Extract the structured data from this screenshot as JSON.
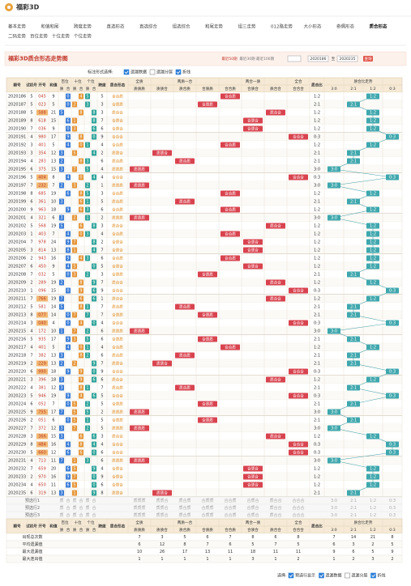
{
  "header": {
    "logo": "福彩3D"
  },
  "nav": {
    "row1": [
      "基本走势",
      "和值和尾",
      "跨度走势",
      "直选形态",
      "直选综合",
      "组选综合",
      "和尾走势",
      "组三走势",
      "012路走势",
      "大小形态",
      "奇偶形态",
      "质合形态"
    ],
    "row2": [
      "二码走势",
      "百位走势",
      "十位走势",
      "个位走势"
    ],
    "active": "质合形态"
  },
  "toolbar": {
    "title": "福彩3D质合形态走势图",
    "links": [
      "最近50期",
      "最近30期",
      "最近100期"
    ],
    "from": "2020186",
    "to_label": "至",
    "to": "2020235",
    "button": "查询"
  },
  "options": {
    "label": "标注形式选择:",
    "items": [
      {
        "text": "遗漏数据",
        "checked": true
      },
      {
        "text": "遗漏分层",
        "checked": false
      },
      {
        "text": "折线",
        "checked": true
      }
    ]
  },
  "table": {
    "headers": {
      "issue": "期号",
      "trial": "试机号",
      "number": "开号",
      "sum": "和值",
      "positions": [
        "百位",
        "十位",
        "个位"
      ],
      "pos_sub": [
        "质",
        "合"
      ],
      "span": "跨度",
      "shape": "质合形态",
      "groups": [
        {
          "name": "全质",
          "cols": [
            "质质质"
          ]
        },
        {
          "name": "两质一合",
          "cols": [
            "质质合",
            "质合质",
            "合质质"
          ]
        },
        {
          "name": "两合一质",
          "cols": [
            "合合质",
            "合质合",
            "质合合"
          ]
        },
        {
          "name": "全合",
          "cols": [
            "合合合"
          ]
        }
      ],
      "ratio": "质合比",
      "trend": "质合比走势",
      "trend_cols": [
        "3:0",
        "2:1",
        "1:2",
        "0:3"
      ]
    },
    "rows": [
      {
        "issue": "2020186",
        "trial": 5,
        "number": "045",
        "digits": [
          0,
          4,
          5
        ],
        "sum": 9,
        "span": 5,
        "shape": "合合质",
        "ratio": "1:2"
      },
      {
        "issue": "2020187",
        "trial": 5,
        "number": "023",
        "digits": [
          0,
          2,
          3
        ],
        "sum": 5,
        "span": 3,
        "shape": "合质质",
        "ratio": "2:1"
      },
      {
        "issue": "2020188",
        "trial": 5,
        "number": "588",
        "digits": [
          5,
          8,
          8
        ],
        "sum": 21,
        "span": 3,
        "shape": "质合合",
        "ratio": "1:2"
      },
      {
        "issue": "2020189",
        "trial": 8,
        "number": "618",
        "digits": [
          6,
          1,
          8
        ],
        "sum": 15,
        "span": 7,
        "shape": "合质合",
        "ratio": "1:2"
      },
      {
        "issue": "2020190",
        "trial": 7,
        "number": "036",
        "digits": [
          0,
          3,
          6
        ],
        "sum": 9,
        "span": 6,
        "shape": "合质合",
        "ratio": "1:2"
      },
      {
        "issue": "2020191",
        "trial": 4,
        "number": "980",
        "digits": [
          9,
          8,
          0
        ],
        "sum": 17,
        "span": 9,
        "shape": "合合合",
        "ratio": "0:3"
      },
      {
        "issue": "2020192",
        "trial": 3,
        "number": "401",
        "digits": [
          4,
          0,
          1
        ],
        "sum": 5,
        "span": 4,
        "shape": "合合质",
        "ratio": "1:2"
      },
      {
        "issue": "2020193",
        "trial": 3,
        "number": "354",
        "digits": [
          3,
          5,
          4
        ],
        "sum": 12,
        "span": 2,
        "shape": "质质合",
        "ratio": "2:1"
      },
      {
        "issue": "2020194",
        "trial": 4,
        "number": "283",
        "digits": [
          2,
          8,
          3
        ],
        "sum": 13,
        "span": 6,
        "shape": "质合质",
        "ratio": "2:1"
      },
      {
        "issue": "2020195",
        "trial": 6,
        "number": "375",
        "digits": [
          3,
          7,
          5
        ],
        "sum": 15,
        "span": 4,
        "shape": "质质质",
        "ratio": "3:0"
      },
      {
        "issue": "2020196",
        "trial": 5,
        "number": "404",
        "digits": [
          4,
          0,
          4
        ],
        "sum": 8,
        "span": 4,
        "shape": "合合合",
        "ratio": "0:3"
      },
      {
        "issue": "2020197",
        "trial": 7,
        "number": "232",
        "digits": [
          2,
          3,
          2
        ],
        "sum": 7,
        "span": 1,
        "shape": "质质质",
        "ratio": "3:0"
      },
      {
        "issue": "2020198",
        "trial": 8,
        "number": "685",
        "digits": [
          6,
          8,
          5
        ],
        "sum": 19,
        "span": 3,
        "shape": "合合质",
        "ratio": "1:2"
      },
      {
        "issue": "2020199",
        "trial": 6,
        "number": "361",
        "digits": [
          3,
          6,
          1
        ],
        "sum": 10,
        "span": 5,
        "shape": "质合质",
        "ratio": "2:1"
      },
      {
        "issue": "2020200",
        "trial": 9,
        "number": "963",
        "digits": [
          9,
          6,
          3
        ],
        "sum": 18,
        "span": 6,
        "shape": "合合质",
        "ratio": "1:2"
      },
      {
        "issue": "2020201",
        "trial": 4,
        "number": "321",
        "digits": [
          3,
          2,
          1
        ],
        "sum": 6,
        "span": 2,
        "shape": "质质质",
        "ratio": "3:0"
      },
      {
        "issue": "2020202",
        "trial": 5,
        "number": "568",
        "digits": [
          5,
          6,
          8
        ],
        "sum": 19,
        "span": 3,
        "shape": "质合合",
        "ratio": "1:2"
      },
      {
        "issue": "2020203",
        "trial": 1,
        "number": "403",
        "digits": [
          4,
          0,
          3
        ],
        "sum": 7,
        "span": 4,
        "shape": "合合质",
        "ratio": "1:2"
      },
      {
        "issue": "2020204",
        "trial": 7,
        "number": "978",
        "digits": [
          9,
          7,
          8
        ],
        "sum": 24,
        "span": 2,
        "shape": "合质合",
        "ratio": "1:2"
      },
      {
        "issue": "2020205",
        "trial": 3,
        "number": "814",
        "digits": [
          8,
          1,
          4
        ],
        "sum": 13,
        "span": 7,
        "shape": "合质合",
        "ratio": "1:2"
      },
      {
        "issue": "2020206",
        "trial": 2,
        "number": "943",
        "digits": [
          9,
          4,
          3
        ],
        "sum": 16,
        "span": 6,
        "shape": "合合质",
        "ratio": "1:2"
      },
      {
        "issue": "2020207",
        "trial": 6,
        "number": "450",
        "digits": [
          4,
          5,
          0
        ],
        "sum": 9,
        "span": 5,
        "shape": "合质合",
        "ratio": "1:2"
      },
      {
        "issue": "2020208",
        "trial": 7,
        "number": "032",
        "digits": [
          0,
          3,
          2
        ],
        "sum": 5,
        "span": 3,
        "shape": "合质质",
        "ratio": "2:1"
      },
      {
        "issue": "2020209",
        "trial": 2,
        "number": "289",
        "digits": [
          2,
          8,
          9
        ],
        "sum": 19,
        "span": 7,
        "shape": "质合合",
        "ratio": "1:2"
      },
      {
        "issue": "2020210",
        "trial": 1,
        "number": "096",
        "digits": [
          0,
          9,
          6
        ],
        "sum": 15,
        "span": 9,
        "shape": "合合合",
        "ratio": "0:3"
      },
      {
        "issue": "2020211",
        "trial": 7,
        "number": "766",
        "digits": [
          7,
          6,
          6
        ],
        "sum": 19,
        "span": 1,
        "shape": "质合合",
        "ratio": "1:2"
      },
      {
        "issue": "2020212",
        "trial": 5,
        "number": "581",
        "digits": [
          5,
          8,
          1
        ],
        "sum": 14,
        "span": 7,
        "shape": "质合质",
        "ratio": "2:1"
      },
      {
        "issue": "2020213",
        "trial": 8,
        "number": "077",
        "digits": [
          0,
          7,
          7
        ],
        "sum": 14,
        "span": 7,
        "shape": "合质质",
        "ratio": "2:1"
      },
      {
        "issue": "2020214",
        "trial": 3,
        "number": "040",
        "digits": [
          0,
          4,
          0
        ],
        "sum": 4,
        "span": 4,
        "shape": "合合合",
        "ratio": "0:3"
      },
      {
        "issue": "2020215",
        "trial": 4,
        "number": "172",
        "digits": [
          1,
          7,
          2
        ],
        "sum": 10,
        "span": 6,
        "shape": "质质质",
        "ratio": "3:0"
      },
      {
        "issue": "2020216",
        "trial": 5,
        "number": "935",
        "digits": [
          9,
          3,
          5
        ],
        "sum": 17,
        "span": 6,
        "shape": "合质质",
        "ratio": "2:1"
      },
      {
        "issue": "2020217",
        "trial": 4,
        "number": "401",
        "digits": [
          4,
          0,
          1
        ],
        "sum": 5,
        "span": 4,
        "shape": "合合质",
        "ratio": "1:2"
      },
      {
        "issue": "2020218",
        "trial": 7,
        "number": "382",
        "digits": [
          3,
          8,
          2
        ],
        "sum": 13,
        "span": 6,
        "shape": "质合质",
        "ratio": "2:1"
      },
      {
        "issue": "2020219",
        "trial": 2,
        "number": "229",
        "digits": [
          2,
          2,
          9
        ],
        "sum": 13,
        "span": 7,
        "shape": "质质合",
        "ratio": "2:1"
      },
      {
        "issue": "2020220",
        "trial": 6,
        "number": "990",
        "digits": [
          9,
          9,
          0
        ],
        "sum": 18,
        "span": 9,
        "shape": "合合合",
        "ratio": "0:3"
      },
      {
        "issue": "2020221",
        "trial": 3,
        "number": "396",
        "digits": [
          3,
          9,
          6
        ],
        "sum": 18,
        "span": 6,
        "shape": "质合合",
        "ratio": "1:2"
      },
      {
        "issue": "2020222",
        "trial": 4,
        "number": "381",
        "digits": [
          3,
          8,
          1
        ],
        "sum": 12,
        "span": 7,
        "shape": "质合质",
        "ratio": "2:1"
      },
      {
        "issue": "2020223",
        "trial": 5,
        "number": "946",
        "digits": [
          9,
          4,
          6
        ],
        "sum": 19,
        "span": 5,
        "shape": "合合合",
        "ratio": "0:3"
      },
      {
        "issue": "2020224",
        "trial": 6,
        "number": "052",
        "digits": [
          0,
          5,
          2
        ],
        "sum": 7,
        "span": 5,
        "shape": "合质质",
        "ratio": "2:1"
      },
      {
        "issue": "2020225",
        "trial": 9,
        "number": "755",
        "digits": [
          7,
          5,
          5
        ],
        "sum": 17,
        "span": 2,
        "shape": "质质质",
        "ratio": "3:0"
      },
      {
        "issue": "2020226",
        "trial": 2,
        "number": "051",
        "digits": [
          0,
          5,
          1
        ],
        "sum": 6,
        "span": 5,
        "shape": "合质质",
        "ratio": "2:1"
      },
      {
        "issue": "2020227",
        "trial": 7,
        "number": "372",
        "digits": [
          3,
          7,
          2
        ],
        "sum": 12,
        "span": 5,
        "shape": "质质质",
        "ratio": "3:0"
      },
      {
        "issue": "2020228",
        "trial": 3,
        "number": "366",
        "digits": [
          3,
          6,
          6
        ],
        "sum": 15,
        "span": 3,
        "shape": "质合合",
        "ratio": "1:2"
      },
      {
        "issue": "2020229",
        "trial": 8,
        "number": "484",
        "digits": [
          4,
          8,
          4
        ],
        "sum": 16,
        "span": 4,
        "shape": "合合合",
        "ratio": "0:3"
      },
      {
        "issue": "2020230",
        "trial": 5,
        "number": "660",
        "digits": [
          6,
          6,
          0
        ],
        "sum": 12,
        "span": 6,
        "shape": "合合合",
        "ratio": "0:3"
      },
      {
        "issue": "2020231",
        "trial": 4,
        "number": "713",
        "digits": [
          7,
          1,
          3
        ],
        "sum": 11,
        "span": 6,
        "shape": "质质质",
        "ratio": "3:0"
      },
      {
        "issue": "2020232",
        "trial": 7,
        "number": "659",
        "digits": [
          6,
          5,
          9
        ],
        "sum": 20,
        "span": 4,
        "shape": "合质合",
        "ratio": "1:2"
      },
      {
        "issue": "2020233",
        "trial": 2,
        "number": "970",
        "digits": [
          9,
          7,
          0
        ],
        "sum": 16,
        "span": 9,
        "shape": "合质合",
        "ratio": "1:2"
      },
      {
        "issue": "2020234",
        "trial": 4,
        "number": "650",
        "digits": [
          6,
          5,
          0
        ],
        "sum": 11,
        "span": 6,
        "shape": "合质合",
        "ratio": "1:2"
      },
      {
        "issue": "2020235",
        "trial": 6,
        "number": "319",
        "digits": [
          3,
          1,
          9
        ],
        "sum": 13,
        "span": 8,
        "shape": "质质合",
        "ratio": "2:1"
      }
    ],
    "preselect": [
      "预选行1",
      "预选行2",
      "预选行3"
    ],
    "stats": [
      {
        "label": "出现总次数",
        "values": [
          7,
          3,
          5,
          6,
          7,
          8,
          6,
          8,
          7,
          14,
          21,
          8
        ]
      },
      {
        "label": "平均遗漏值",
        "values": [
          6,
          12,
          8,
          7,
          6,
          5,
          7,
          5,
          6,
          3,
          2,
          5
        ]
      },
      {
        "label": "最大遗漏值",
        "values": [
          10,
          26,
          17,
          13,
          11,
          18,
          11,
          11,
          9,
          6,
          5,
          9
        ]
      },
      {
        "label": "最大连出值",
        "values": [
          1,
          1,
          1,
          1,
          1,
          3,
          1,
          2,
          1,
          2,
          3,
          2
        ]
      }
    ]
  },
  "footer": {
    "label": "选择:",
    "items": [
      {
        "text": "预选行显示",
        "checked": true
      },
      {
        "text": "遗漏数据",
        "checked": true
      },
      {
        "text": "遗漏分层",
        "checked": false
      },
      {
        "text": "折线",
        "checked": true
      }
    ]
  }
}
